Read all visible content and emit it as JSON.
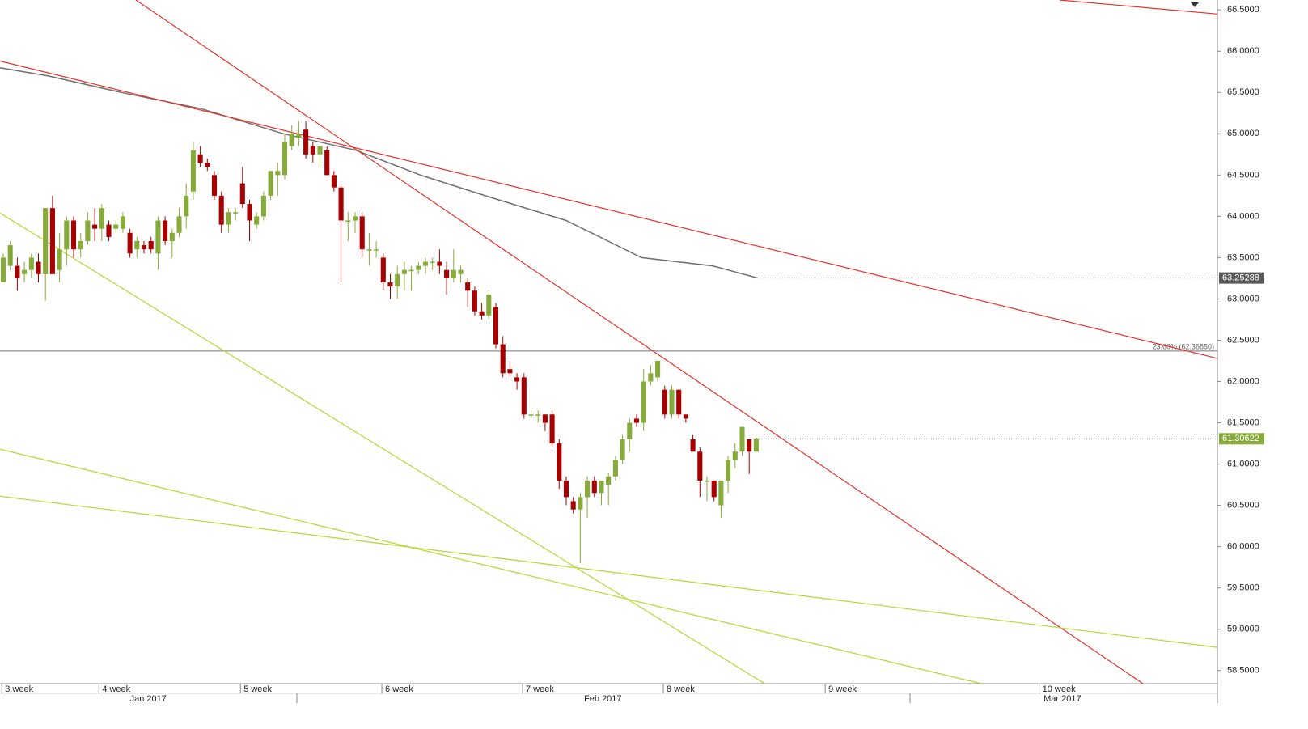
{
  "chart_data": {
    "type": "candlestick",
    "up_color": "#86ab3a",
    "down_color": "#a60000",
    "open": [
      63.2,
      63.4,
      63.4,
      63.3,
      63.35,
      63.45,
      63.3,
      64.1,
      63.35,
      63.6,
      63.95,
      63.6,
      63.7,
      63.9,
      63.85,
      63.9,
      63.85,
      63.85,
      63.8,
      63.6,
      63.65,
      63.7,
      63.55,
      63.95,
      63.7,
      63.8,
      64.0,
      64.3,
      64.75,
      64.65,
      64.5,
      64.25,
      63.9,
      64.05,
      64.4,
      64.15,
      63.9,
      64.0,
      64.25,
      64.5,
      64.5,
      64.85,
      64.95,
      65.05,
      64.85,
      64.75,
      64.8,
      64.5,
      64.35,
      63.95,
      63.95,
      64.0,
      63.6,
      63.6,
      63.5,
      63.2,
      63.15,
      63.3,
      63.35,
      63.35,
      63.4,
      63.45,
      63.45,
      63.35,
      63.25,
      63.3,
      63.2,
      63.1,
      62.85,
      62.8,
      62.9,
      62.45,
      62.15,
      62.05,
      62.05,
      61.6,
      61.6,
      61.6,
      61.6,
      61.25,
      60.8,
      60.55,
      60.45,
      60.6,
      60.8,
      60.65,
      60.75,
      60.85,
      61.05,
      61.3,
      61.55,
      61.5,
      62.0,
      62.05,
      61.9,
      61.6,
      61.9,
      61.6,
      61.3,
      61.15,
      60.8,
      60.8,
      60.5,
      60.8,
      61.05,
      61.15,
      61.3,
      61.15
    ],
    "high": [
      63.55,
      63.7,
      63.5,
      63.45,
      63.55,
      63.55,
      64.1,
      64.25,
      63.8,
      64.0,
      64.0,
      63.8,
      64.05,
      64.1,
      64.15,
      63.95,
      63.95,
      64.05,
      63.85,
      63.75,
      63.7,
      63.75,
      64.0,
      64.0,
      63.85,
      64.1,
      64.4,
      64.9,
      64.85,
      64.7,
      64.55,
      64.3,
      64.1,
      64.1,
      64.6,
      64.2,
      64.05,
      64.3,
      64.55,
      64.65,
      65.0,
      65.1,
      65.15,
      65.15,
      64.9,
      64.85,
      64.85,
      64.55,
      64.4,
      64.05,
      64.05,
      64.05,
      63.8,
      63.7,
      63.55,
      63.3,
      63.4,
      63.45,
      63.4,
      63.45,
      63.5,
      63.5,
      63.6,
      63.45,
      63.6,
      63.4,
      63.25,
      63.15,
      62.95,
      63.1,
      62.95,
      62.55,
      62.25,
      62.1,
      62.1,
      61.65,
      61.65,
      61.6,
      61.65,
      61.3,
      60.85,
      60.6,
      60.65,
      60.85,
      60.85,
      60.8,
      60.9,
      61.1,
      61.35,
      61.55,
      61.6,
      62.15,
      62.2,
      62.25,
      61.95,
      61.95,
      61.9,
      61.6,
      61.35,
      61.2,
      60.85,
      60.8,
      60.8,
      61.1,
      61.25,
      61.45,
      61.3,
      61.32
    ],
    "low": [
      63.2,
      63.35,
      63.1,
      63.2,
      63.25,
      63.2,
      62.98,
      63.3,
      63.2,
      63.4,
      63.5,
      63.5,
      63.65,
      63.7,
      63.7,
      63.7,
      63.8,
      63.8,
      63.5,
      63.5,
      63.55,
      63.55,
      63.35,
      63.65,
      63.5,
      63.75,
      63.85,
      64.2,
      64.6,
      64.55,
      64.2,
      63.8,
      63.8,
      63.95,
      64.1,
      63.7,
      63.85,
      63.95,
      64.2,
      64.25,
      64.45,
      64.8,
      64.85,
      64.7,
      64.65,
      64.6,
      64.5,
      64.3,
      63.2,
      63.7,
      63.8,
      63.5,
      63.4,
      63.5,
      63.1,
      63.0,
      63.0,
      63.1,
      63.1,
      63.3,
      63.3,
      63.35,
      63.3,
      63.05,
      63.2,
      63.2,
      62.9,
      62.8,
      62.75,
      62.75,
      62.4,
      62.05,
      62.05,
      61.9,
      61.55,
      61.55,
      61.5,
      61.4,
      61.2,
      60.7,
      60.5,
      60.4,
      59.8,
      60.35,
      60.6,
      60.5,
      60.5,
      60.8,
      61.0,
      61.15,
      61.45,
      61.4,
      61.95,
      62.0,
      61.55,
      61.55,
      61.55,
      61.5,
      61.15,
      60.6,
      60.55,
      60.55,
      60.35,
      60.65,
      60.95,
      61.1,
      60.88,
      61.15
    ],
    "close": [
      63.5,
      63.65,
      63.25,
      63.35,
      63.5,
      63.3,
      64.1,
      63.3,
      63.6,
      63.95,
      63.6,
      63.7,
      63.95,
      63.85,
      64.1,
      63.75,
      63.9,
      64.0,
      63.55,
      63.7,
      63.6,
      63.6,
      63.95,
      63.7,
      63.8,
      64.0,
      64.25,
      64.8,
      64.65,
      64.6,
      64.25,
      63.9,
      64.05,
      64.05,
      64.15,
      63.95,
      64.0,
      64.25,
      64.55,
      64.55,
      64.9,
      65.0,
      65.0,
      64.75,
      64.75,
      64.85,
      64.5,
      64.35,
      63.95,
      63.95,
      64.0,
      63.6,
      63.6,
      63.6,
      63.2,
      63.15,
      63.3,
      63.35,
      63.35,
      63.4,
      63.45,
      63.45,
      63.4,
      63.25,
      63.35,
      63.35,
      63.1,
      62.85,
      62.8,
      63.05,
      62.45,
      62.1,
      62.1,
      62.0,
      61.6,
      61.6,
      61.6,
      61.5,
      61.25,
      60.8,
      60.6,
      60.45,
      60.6,
      60.8,
      60.65,
      60.8,
      60.85,
      61.05,
      61.3,
      61.5,
      61.5,
      62.0,
      62.1,
      62.25,
      61.6,
      61.9,
      61.6,
      61.55,
      61.15,
      60.8,
      60.8,
      60.6,
      60.8,
      61.05,
      61.15,
      61.45,
      61.15,
      61.31
    ],
    "moving_average": {
      "color": "#6f6f6f",
      "x": [
        -0.46,
        6.4,
        16.8,
        28.3,
        39.8,
        50.1,
        59.3,
        68.5,
        80.0,
        90.7,
        100.8,
        107.2
      ],
      "values": [
        65.8,
        65.7,
        65.5,
        65.3,
        65.0,
        64.8,
        64.5,
        64.25,
        63.95,
        63.5,
        63.4,
        63.25288
      ]
    },
    "trend_lines": [
      {
        "color": "#e8302a",
        "x": [
          18.85,
          161.95
        ],
        "values": [
          66.62,
          58.34
        ]
      },
      {
        "color": "#e8302a",
        "x": [
          -0.46,
          172.53
        ],
        "values": [
          65.88,
          62.28
        ]
      },
      {
        "color": "#e8302a",
        "x": [
          150.1,
          172.53
        ],
        "values": [
          66.62,
          66.45
        ]
      },
      {
        "color": "#b5d631",
        "x": [
          -0.46,
          108.2
        ],
        "values": [
          64.04,
          58.34
        ]
      },
      {
        "color": "#b5d631",
        "x": [
          -0.46,
          139.0
        ],
        "values": [
          61.18,
          58.34
        ]
      },
      {
        "color": "#b5d631",
        "x": [
          -0.46,
          172.53
        ],
        "values": [
          60.61,
          58.78
        ]
      }
    ],
    "fib": {
      "level": 62.3685,
      "label": "23.60% (62.36850)",
      "color": "#777777"
    },
    "ma_last": 63.25288,
    "ma_last_color": "#595959",
    "last_price": 61.30622,
    "last_price_color": "#86ab3a",
    "xlim": [
      -0.46,
      172.53
    ],
    "ylim": [
      58.34,
      66.62
    ],
    "yticks": [
      {
        "value": 58.5,
        "label": "58.5000"
      },
      {
        "value": 59,
        "label": "59.0000"
      },
      {
        "value": 59.5,
        "label": "59.5000"
      },
      {
        "value": 60,
        "label": "60.0000"
      },
      {
        "value": 60.5,
        "label": "60.5000"
      },
      {
        "value": 61,
        "label": "61.0000"
      },
      {
        "value": 61.5,
        "label": "61.5000"
      },
      {
        "value": 62,
        "label": "62.0000"
      },
      {
        "value": 62.5,
        "label": "62.5000"
      },
      {
        "value": 63,
        "label": "63.0000"
      },
      {
        "value": 63.5,
        "label": "63.5000"
      },
      {
        "value": 64,
        "label": "64.0000"
      },
      {
        "value": 64.5,
        "label": "64.5000"
      },
      {
        "value": 65,
        "label": "65.0000"
      },
      {
        "value": 65.5,
        "label": "65.5000"
      },
      {
        "value": 66,
        "label": "66.0000"
      },
      {
        "value": 66.5,
        "label": "66.5000"
      }
    ],
    "xticks": [
      {
        "value": -0.2,
        "label": "3 week"
      },
      {
        "value": 13.6,
        "label": "4 week"
      },
      {
        "value": 33.7,
        "label": "5 week"
      },
      {
        "value": 53.8,
        "label": "6 week"
      },
      {
        "value": 73.8,
        "label": "7 week"
      },
      {
        "value": 93.8,
        "label": "8 week"
      },
      {
        "value": 116.8,
        "label": "9 week"
      },
      {
        "value": 147.2,
        "label": "10 week"
      }
    ],
    "month_ticks": [
      {
        "value": 20.6,
        "label": "Jan 2017"
      },
      {
        "value": 85.2,
        "label": "Feb 2017"
      },
      {
        "value": 150.5,
        "label": "Mar 2017"
      }
    ]
  }
}
